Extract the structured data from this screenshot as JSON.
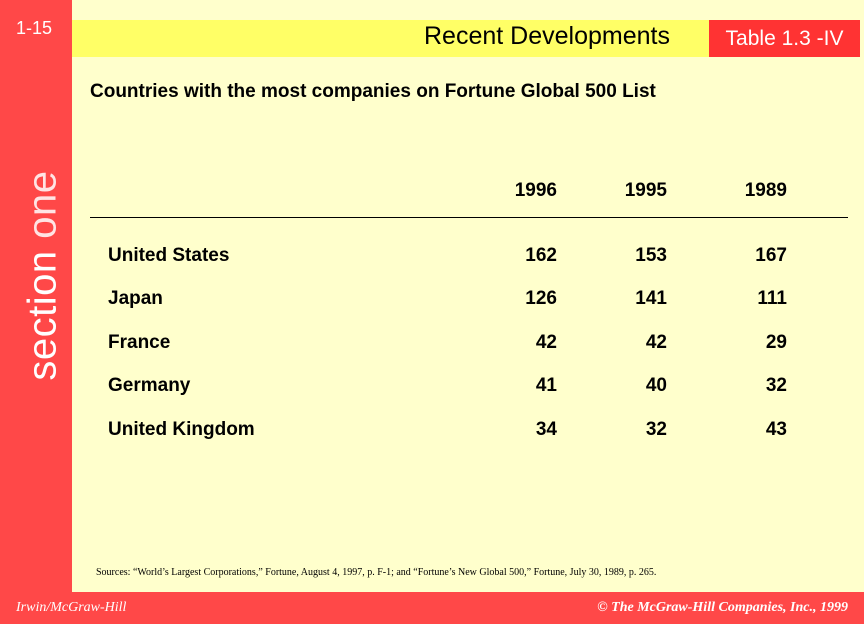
{
  "slide_number": "1-15",
  "section_label": {
    "word1": "section",
    "word2": "one"
  },
  "header": {
    "title": "Recent Developments",
    "table_tag": "Table 1.3 -IV"
  },
  "subtitle": "Countries with the most companies on Fortune Global 500 List",
  "table": {
    "columns": [
      "1996",
      "1995",
      "1989"
    ],
    "rows": [
      {
        "country": "United States",
        "values": [
          "162",
          "153",
          "167"
        ]
      },
      {
        "country": "Japan",
        "values": [
          "126",
          "141",
          "111"
        ]
      },
      {
        "country": "France",
        "values": [
          "42",
          "42",
          "29"
        ]
      },
      {
        "country": "Germany",
        "values": [
          "41",
          "40",
          "32"
        ]
      },
      {
        "country": "United Kingdom",
        "values": [
          "34",
          "32",
          "43"
        ]
      }
    ]
  },
  "sources": "Sources: “World’s Largest Corporations,” Fortune, August 4, 1997, p. F-1; and “Fortune’s New Global 500,” Fortune, July 30, 1989, p. 265.",
  "footer": {
    "left": "Irwin/McGraw-Hill",
    "right": "© The McGraw-Hill Companies, Inc., 1999"
  }
}
